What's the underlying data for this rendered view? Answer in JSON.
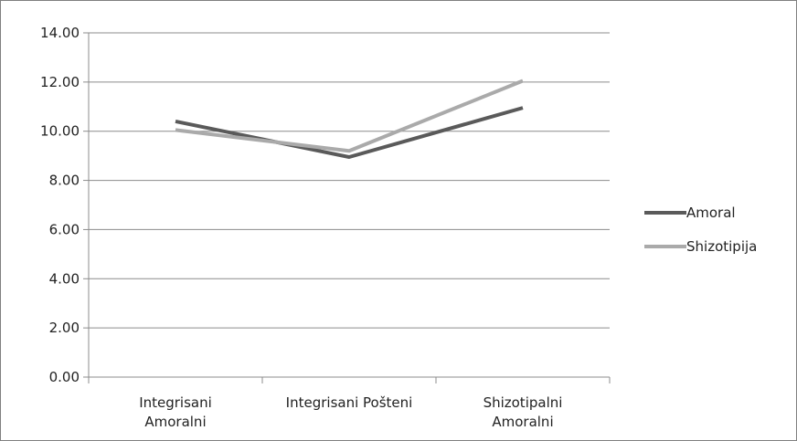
{
  "chart_data": {
    "type": "line",
    "title": "",
    "xlabel": "",
    "ylabel": "",
    "categories": [
      [
        "Integrisani",
        "Amoralni"
      ],
      [
        "Integrisani Pošteni"
      ],
      [
        "Shizotipalni",
        "Amoralni"
      ]
    ],
    "series": [
      {
        "name": "Amoral",
        "values": [
          10.4,
          8.95,
          10.95
        ],
        "color": "#5a5a5a"
      },
      {
        "name": "Shizotipija",
        "values": [
          10.05,
          9.2,
          12.05
        ],
        "color": "#aaaaaa"
      }
    ],
    "ylim": [
      0,
      14
    ],
    "yticks": [
      "0.00",
      "2.00",
      "4.00",
      "6.00",
      "8.00",
      "10.00",
      "12.00",
      "14.00"
    ],
    "grid": true,
    "legend": "right"
  }
}
